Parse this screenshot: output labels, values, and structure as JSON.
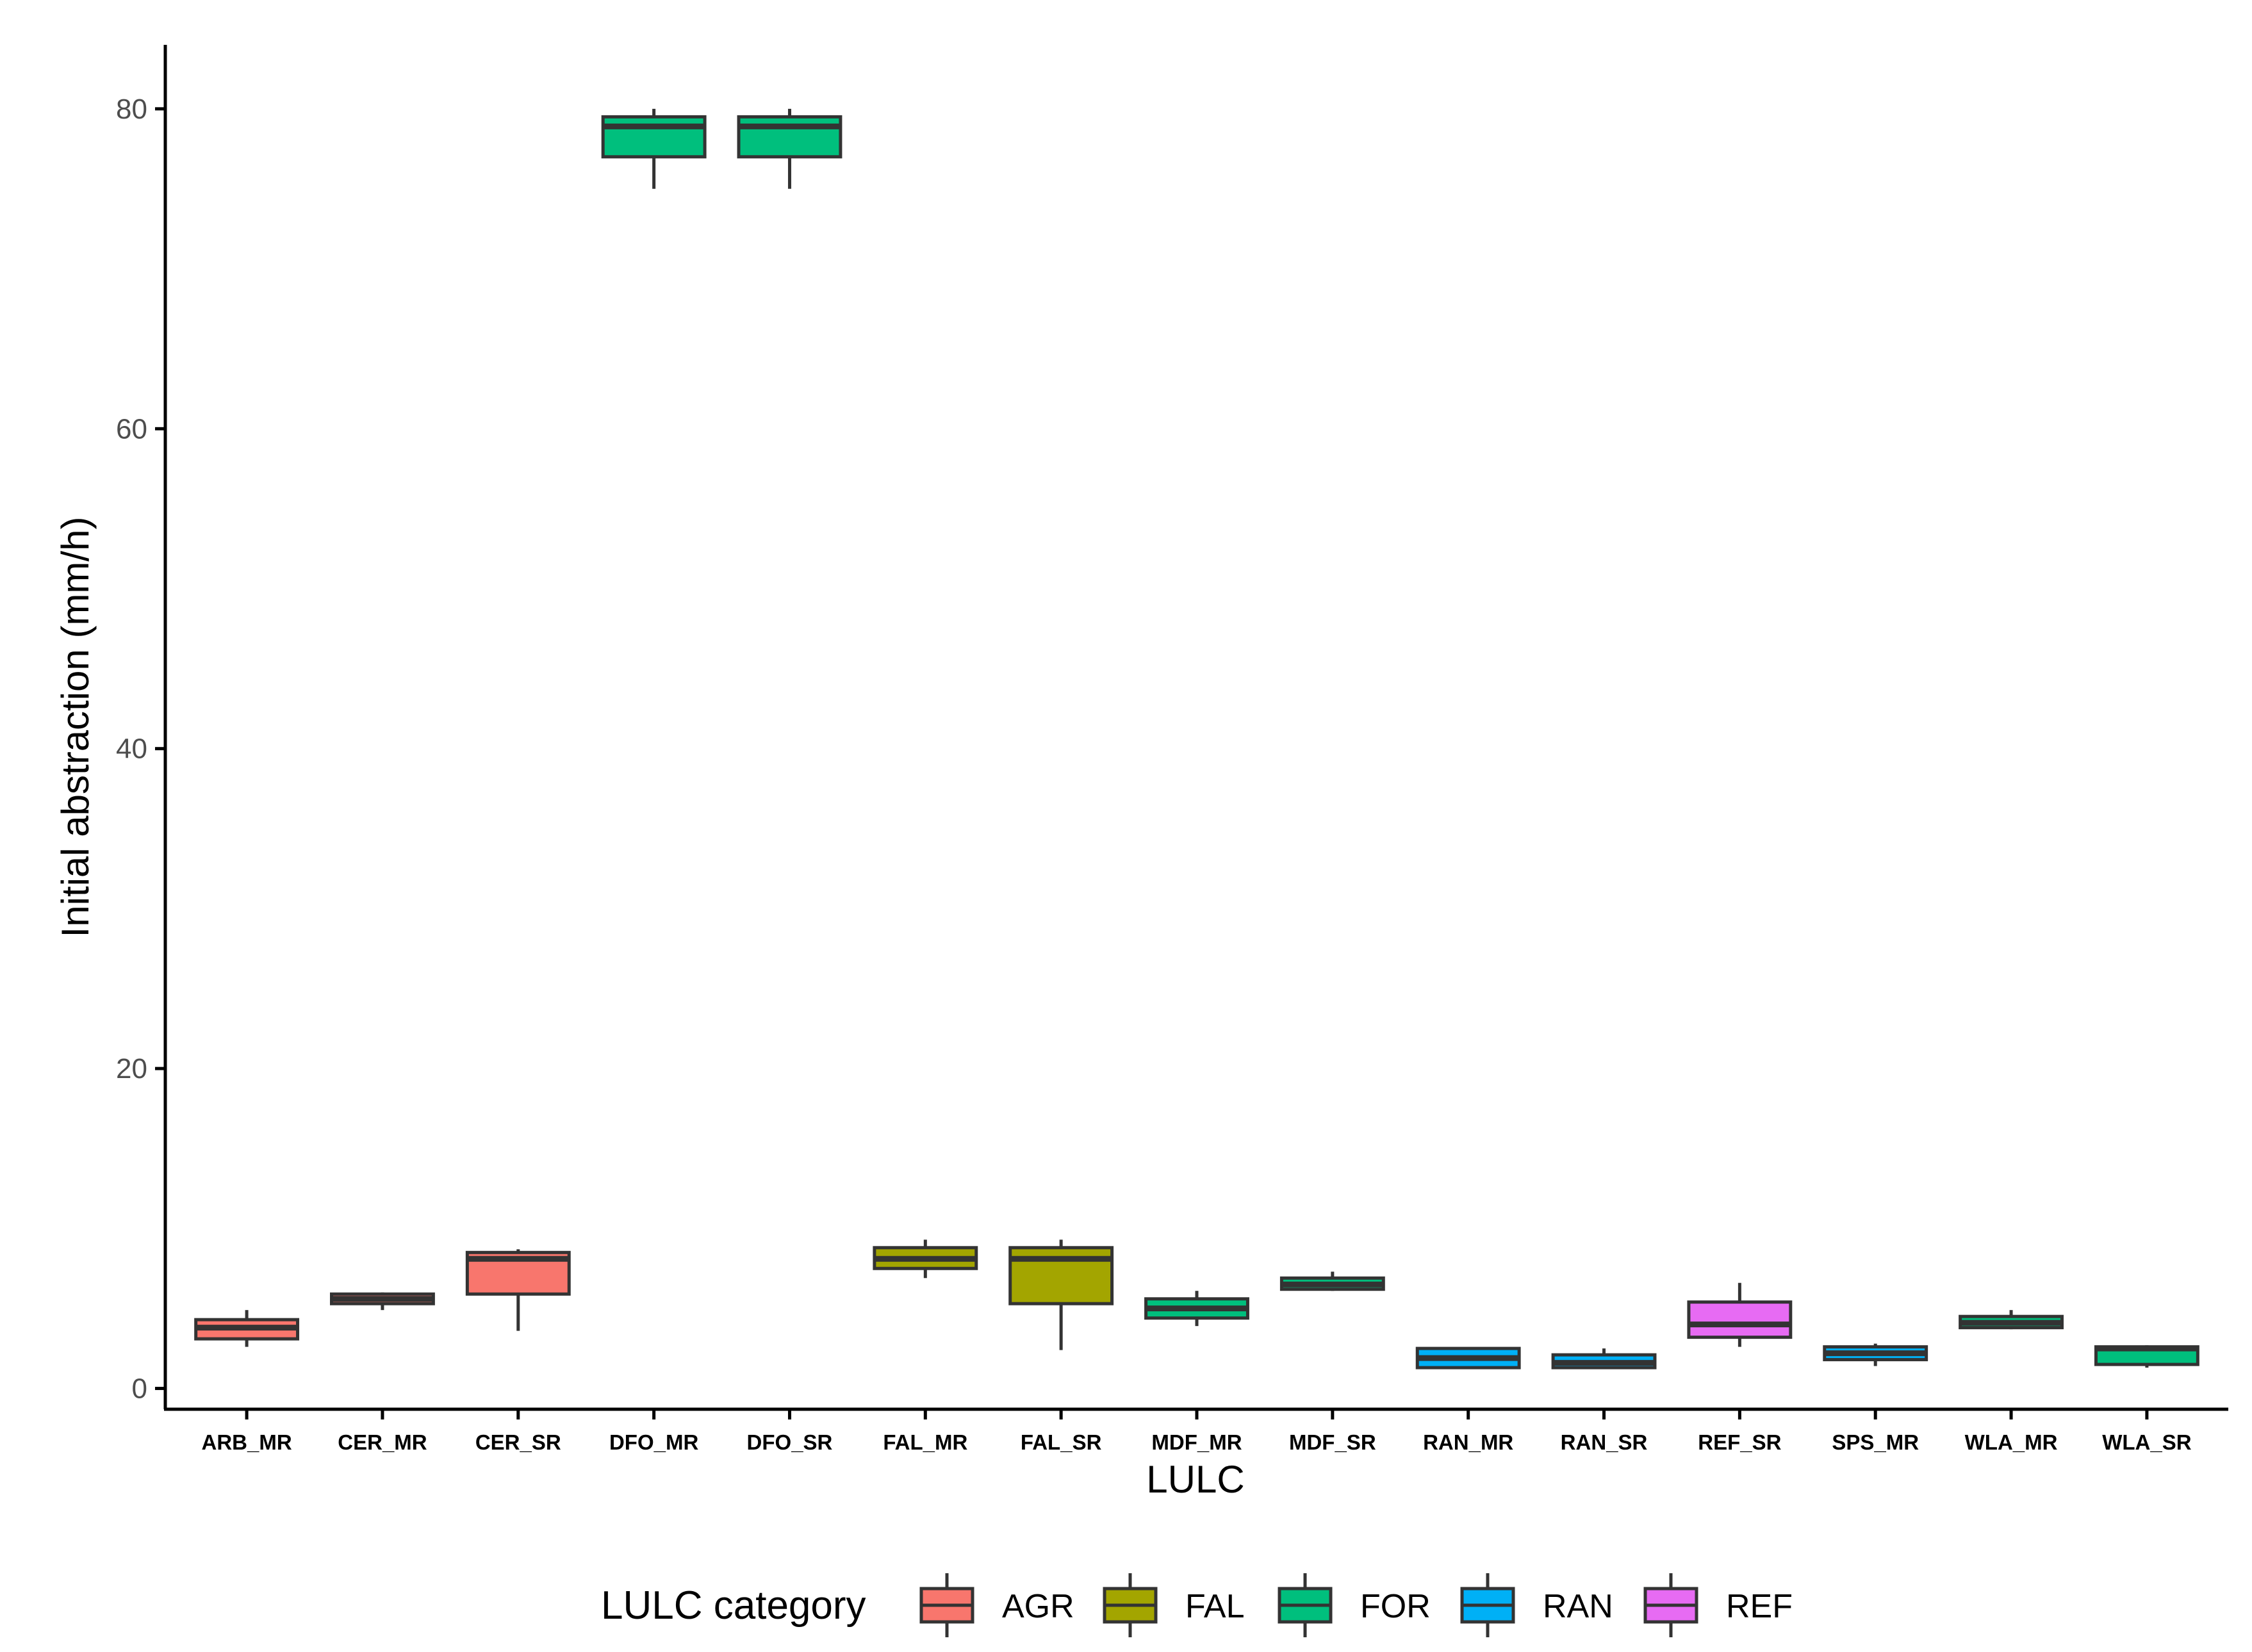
{
  "chart_data": {
    "type": "boxplot",
    "xlabel": "LULC",
    "ylabel": "Initial abstraction (mm/h)",
    "ylim": [
      -1.3,
      84
    ],
    "yticks": [
      0,
      20,
      40,
      60,
      80
    ],
    "grid": false,
    "legend": {
      "title": "LULC category",
      "position": "bottom",
      "items": [
        {
          "label": "AGR",
          "color": "#F8766D"
        },
        {
          "label": "FAL",
          "color": "#A3A500"
        },
        {
          "label": "FOR",
          "color": "#00BF7D"
        },
        {
          "label": "RAN",
          "color": "#00B0F6"
        },
        {
          "label": "REF",
          "color": "#E76BF3"
        }
      ]
    },
    "boxes": [
      {
        "category": "ARB_MR",
        "group": "AGR",
        "min": 2.6,
        "q1": 3.1,
        "median": 3.8,
        "q3": 4.3,
        "max": 4.9
      },
      {
        "category": "CER_MR",
        "group": "AGR",
        "min": 4.9,
        "q1": 5.3,
        "median": 5.6,
        "q3": 5.9,
        "max": 6.0
      },
      {
        "category": "CER_SR",
        "group": "AGR",
        "min": 3.6,
        "q1": 5.9,
        "median": 8.1,
        "q3": 8.5,
        "max": 8.7
      },
      {
        "category": "DFO_MR",
        "group": "FOR",
        "min": 75.0,
        "q1": 77.0,
        "median": 78.9,
        "q3": 79.5,
        "max": 80.0
      },
      {
        "category": "DFO_SR",
        "group": "FOR",
        "min": 75.0,
        "q1": 77.0,
        "median": 78.9,
        "q3": 79.5,
        "max": 80.0
      },
      {
        "category": "FAL_MR",
        "group": "FAL",
        "min": 6.9,
        "q1": 7.5,
        "median": 8.1,
        "q3": 8.8,
        "max": 9.3
      },
      {
        "category": "FAL_SR",
        "group": "FAL",
        "min": 2.4,
        "q1": 5.3,
        "median": 8.1,
        "q3": 8.8,
        "max": 9.3
      },
      {
        "category": "MDF_MR",
        "group": "FOR",
        "min": 3.9,
        "q1": 4.4,
        "median": 5.0,
        "q3": 5.6,
        "max": 6.1
      },
      {
        "category": "MDF_SR",
        "group": "FOR",
        "min": 6.1,
        "q1": 6.2,
        "median": 6.5,
        "q3": 6.9,
        "max": 7.3
      },
      {
        "category": "RAN_MR",
        "group": "RAN",
        "min": 1.3,
        "q1": 1.3,
        "median": 1.9,
        "q3": 2.5,
        "max": 2.5
      },
      {
        "category": "RAN_SR",
        "group": "RAN",
        "min": 1.3,
        "q1": 1.3,
        "median": 1.6,
        "q3": 2.1,
        "max": 2.5
      },
      {
        "category": "REF_SR",
        "group": "REF",
        "min": 2.6,
        "q1": 3.2,
        "median": 4.0,
        "q3": 5.4,
        "max": 6.6
      },
      {
        "category": "SPS_MR",
        "group": "RAN",
        "min": 1.4,
        "q1": 1.8,
        "median": 2.2,
        "q3": 2.6,
        "max": 2.8
      },
      {
        "category": "WLA_MR",
        "group": "FOR",
        "min": 3.7,
        "q1": 3.8,
        "median": 4.1,
        "q3": 4.5,
        "max": 4.9
      },
      {
        "category": "WLA_SR",
        "group": "FOR",
        "min": 1.3,
        "q1": 1.5,
        "median": 2.5,
        "q3": 2.6,
        "max": 2.7
      }
    ]
  }
}
